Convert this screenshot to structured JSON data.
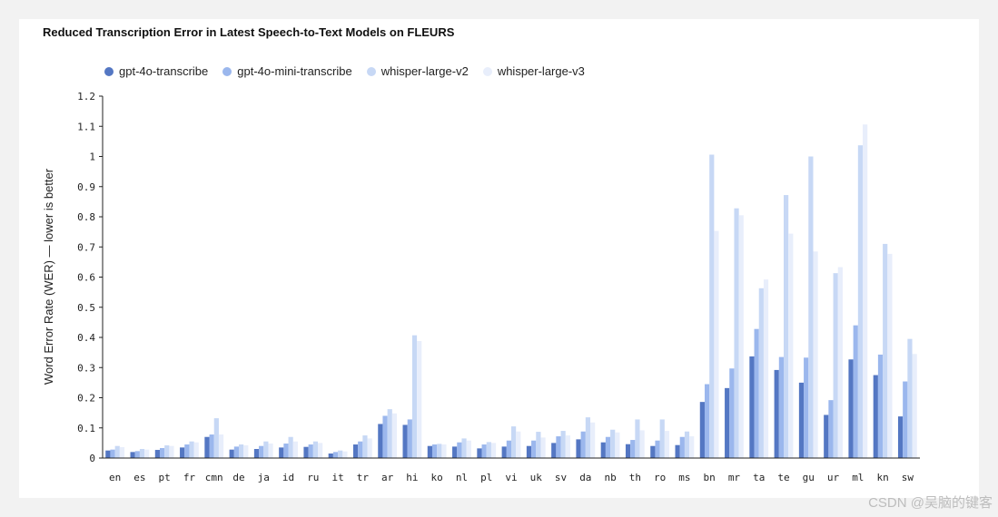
{
  "chart_data": {
    "type": "bar",
    "title": "Reduced Transcription Error in Latest Speech-to-Text Models on FLEURS",
    "xlabel": "",
    "ylabel": "Word Error Rate (WER) — lower is better",
    "ylim": [
      0,
      1.2
    ],
    "yticks": [
      "0",
      "0.1",
      "0.2",
      "0.3",
      "0.4",
      "0.5",
      "0.6",
      "0.7",
      "0.8",
      "0.9",
      "1",
      "1.1",
      "1.2"
    ],
    "legend_position": "top-left",
    "categories": [
      "en",
      "es",
      "pt",
      "fr",
      "cmn",
      "de",
      "ja",
      "id",
      "ru",
      "it",
      "tr",
      "ar",
      "hi",
      "ko",
      "nl",
      "pl",
      "vi",
      "uk",
      "sv",
      "da",
      "nb",
      "th",
      "ro",
      "ms",
      "bn",
      "mr",
      "ta",
      "te",
      "gu",
      "ur",
      "ml",
      "kn",
      "sw"
    ],
    "series": [
      {
        "name": "gpt-4o-transcribe",
        "color": "#5477c3",
        "values": [
          0.025,
          0.02,
          0.027,
          0.035,
          0.07,
          0.028,
          0.03,
          0.035,
          0.037,
          0.015,
          0.045,
          0.113,
          0.11,
          0.04,
          0.038,
          0.032,
          0.038,
          0.04,
          0.05,
          0.062,
          0.052,
          0.046,
          0.04,
          0.043,
          0.186,
          0.232,
          0.337,
          0.292,
          0.25,
          0.143,
          0.327,
          0.275,
          0.138
        ]
      },
      {
        "name": "gpt-4o-mini-transcribe",
        "color": "#9bb7ed",
        "values": [
          0.028,
          0.023,
          0.033,
          0.045,
          0.078,
          0.038,
          0.04,
          0.048,
          0.045,
          0.02,
          0.055,
          0.14,
          0.128,
          0.045,
          0.052,
          0.045,
          0.058,
          0.058,
          0.072,
          0.088,
          0.07,
          0.06,
          0.058,
          0.07,
          0.245,
          0.297,
          0.428,
          0.335,
          0.333,
          0.192,
          0.44,
          0.343,
          0.254
        ]
      },
      {
        "name": "whisper-large-v2",
        "color": "#c7d8f5",
        "values": [
          0.04,
          0.03,
          0.042,
          0.055,
          0.132,
          0.045,
          0.055,
          0.07,
          0.055,
          0.025,
          0.075,
          0.162,
          0.407,
          0.047,
          0.065,
          0.053,
          0.105,
          0.087,
          0.09,
          0.135,
          0.094,
          0.128,
          0.128,
          0.088,
          1.006,
          0.828,
          0.563,
          0.872,
          1.0,
          0.613,
          1.037,
          0.71,
          0.395
        ]
      },
      {
        "name": "whisper-large-v3",
        "color": "#e8eefb",
        "values": [
          0.036,
          0.028,
          0.04,
          0.052,
          0.078,
          0.042,
          0.048,
          0.055,
          0.05,
          0.022,
          0.065,
          0.148,
          0.388,
          0.045,
          0.058,
          0.05,
          0.088,
          0.068,
          0.075,
          0.118,
          0.085,
          0.092,
          0.09,
          0.072,
          0.753,
          0.805,
          0.592,
          0.744,
          0.685,
          0.633,
          1.106,
          0.677,
          0.345
        ]
      }
    ]
  },
  "watermark": "CSDN @吴脑的键客"
}
